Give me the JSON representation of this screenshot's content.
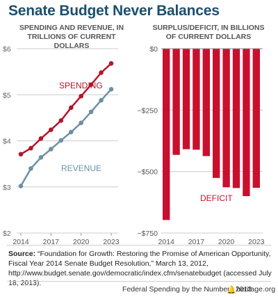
{
  "title": "Senate Budget Never Balances",
  "left_panel": {
    "title_line1": "SPENDING AND REVENUE, IN",
    "title_line2": "TRILLIONS OF CURRENT DOLLARS"
  },
  "right_panel": {
    "title_line1": "SURPLUS/DEFICIT, IN BILLIONS",
    "title_line2": "OF CURRENT DOLLARS"
  },
  "source": {
    "label": "Source:",
    "text": "“Foundation for Growth: Restoring the Promise of American Opportunity, Fiscal Year 2014 Senate Budget Resolution,” March 13, 2012, http://www.budget.senate.gov/democratic/index.cfm/senatebudget (accessed July 18, 2013)."
  },
  "footer": {
    "left": "Federal Spending by the Numbers 2013",
    "right": "heritage.org",
    "icon": "liberty-bell-icon"
  },
  "colors": {
    "spending": "#b5142b",
    "revenue": "#6e8fa3",
    "deficit": "#c8102e",
    "title": "#1d4e6e"
  },
  "chart_data": [
    {
      "type": "line",
      "x": [
        2014,
        2015,
        2016,
        2017,
        2018,
        2019,
        2020,
        2021,
        2022,
        2023
      ],
      "series": [
        {
          "name": "SPENDING",
          "values": [
            3.71,
            3.84,
            4.05,
            4.24,
            4.44,
            4.72,
            4.97,
            5.22,
            5.48,
            5.68
          ]
        },
        {
          "name": "REVENUE",
          "values": [
            3.02,
            3.4,
            3.64,
            3.82,
            4.01,
            4.19,
            4.39,
            4.63,
            4.88,
            5.12
          ]
        }
      ],
      "ylim": [
        2,
        6
      ],
      "yticks": [
        "$2",
        "$3",
        "$4",
        "$5",
        "$6"
      ],
      "yticks_values": [
        2,
        3,
        4,
        5,
        6
      ],
      "xticks": [
        "2014",
        "2017",
        "2020",
        "2023"
      ],
      "xticks_values": [
        2014,
        2017,
        2020,
        2023
      ],
      "grid": true
    },
    {
      "type": "bar",
      "categories": [
        "2014",
        "2015",
        "2016",
        "2017",
        "2018",
        "2019",
        "2020",
        "2021",
        "2022",
        "2023"
      ],
      "values": [
        -697,
        -432,
        -409,
        -411,
        -437,
        -526,
        -564,
        -567,
        -600,
        -566
      ],
      "series_label": "DEFICIT",
      "ylim": [
        -750,
        0
      ],
      "yticks": [
        "$0",
        "−$250",
        "−$500",
        "−$750"
      ],
      "yticks_values": [
        0,
        -250,
        -500,
        -750
      ],
      "xticks": [
        "2014",
        "2017",
        "2020",
        "2023"
      ],
      "grid": true
    }
  ]
}
